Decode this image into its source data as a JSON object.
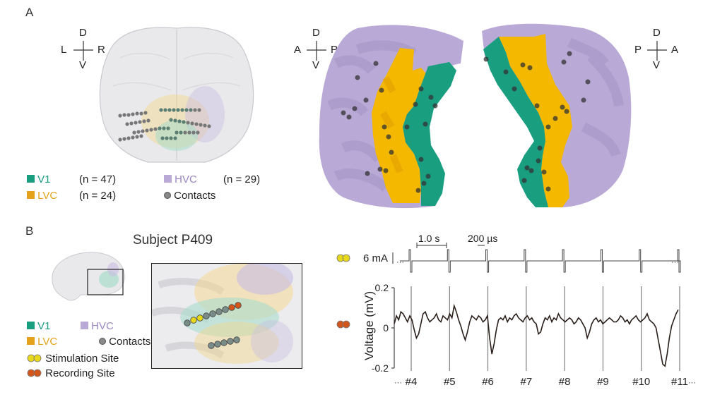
{
  "panel_a": {
    "letter": "A",
    "compass_brain": {
      "top": "D",
      "bottom": "V",
      "left": "L",
      "right": "R"
    },
    "compass_left": {
      "top": "D",
      "bottom": "V",
      "left": "A",
      "right": "P"
    },
    "compass_right": {
      "top": "D",
      "bottom": "V",
      "left": "P",
      "right": "A"
    },
    "legend": {
      "v1_label": "V1",
      "v1_count": "(n = 47)",
      "lvc_label": "LVC",
      "lvc_count": "(n = 24)",
      "hvc_label": "HVC",
      "hvc_count": "(n = 29)",
      "contacts_label": "Contacts"
    }
  },
  "panel_b": {
    "letter": "B",
    "subject_title": "Subject P409",
    "legend": {
      "v1_label": "V1",
      "hvc_label": "HVC",
      "lvc_label": "LVC",
      "contacts_label": "Contacts",
      "stim_label": "Stimulation Site",
      "rec_label": "Recording Site"
    },
    "stim_trace": {
      "amplitude_label": "6 mA",
      "period_label": "1.0 s",
      "pulse_width_label": "200 µs",
      "ellipsis": "···"
    }
  },
  "colors": {
    "v1": "#1a9e80",
    "lvc": "#f5b800",
    "hvc": "#b9a9d6",
    "contact": "#555555",
    "stim": "#e8d81a",
    "rec": "#d2561c",
    "trace": "#2a1e1a"
  },
  "chart_data": {
    "type": "line",
    "title": "",
    "xlabel": "",
    "ylabel": "Voltage (mV)",
    "ylim": [
      -0.2,
      0.2
    ],
    "yticks": [
      "0.2",
      "0",
      "-0.2"
    ],
    "stim_markers": [
      "#4",
      "#5",
      "#6",
      "#7",
      "#8",
      "#9",
      "#10",
      "#11"
    ],
    "ellipsis": "···",
    "voltage_trace": [
      0.02,
      0.06,
      0.04,
      0.08,
      0.07,
      0.05,
      0.03,
      0.06,
      0.04,
      -0.01,
      -0.05,
      -0.03,
      0.02,
      0.07,
      0.08,
      0.05,
      0.03,
      0.04,
      0.05,
      0.07,
      0.04,
      0.03,
      0.06,
      0.05,
      0.04,
      0.07,
      0.05,
      0.11,
      0.08,
      0.04,
      0.01,
      -0.03,
      -0.06,
      -0.02,
      0.03,
      0.06,
      0.05,
      0.04,
      0.06,
      0.05,
      0.03,
      0.04,
      0.06,
      -0.05,
      -0.13,
      -0.08,
      -0.01,
      0.04,
      0.05,
      0.04,
      0.06,
      0.03,
      0.05,
      0.04,
      0.06,
      0.07,
      0.05,
      0.04,
      0.03,
      0.05,
      0.06,
      0.04,
      0.05,
      0.03,
      0.02,
      -0.03,
      -0.02,
      0.02,
      0.05,
      0.04,
      0.06,
      0.03,
      0.05,
      0.04,
      0.07,
      0.05,
      0.04,
      0.03,
      0.04,
      0.05,
      0.04,
      0.02,
      0.03,
      0.05,
      0.04,
      0.02,
      0.0,
      -0.05,
      -0.02,
      0.02,
      0.04,
      0.05,
      0.03,
      0.04,
      0.02,
      0.03,
      0.04,
      0.05,
      0.04,
      0.03,
      0.03,
      0.04,
      0.06,
      0.05,
      0.03,
      0.04,
      0.02,
      0.04,
      0.05,
      0.06,
      0.04,
      0.03,
      0.04,
      0.05,
      0.07,
      0.04,
      0.03,
      0.02,
      0.0,
      -0.06,
      -0.12,
      -0.18,
      -0.19,
      -0.13,
      -0.05,
      0.01,
      0.04,
      0.07,
      0.09
    ]
  }
}
